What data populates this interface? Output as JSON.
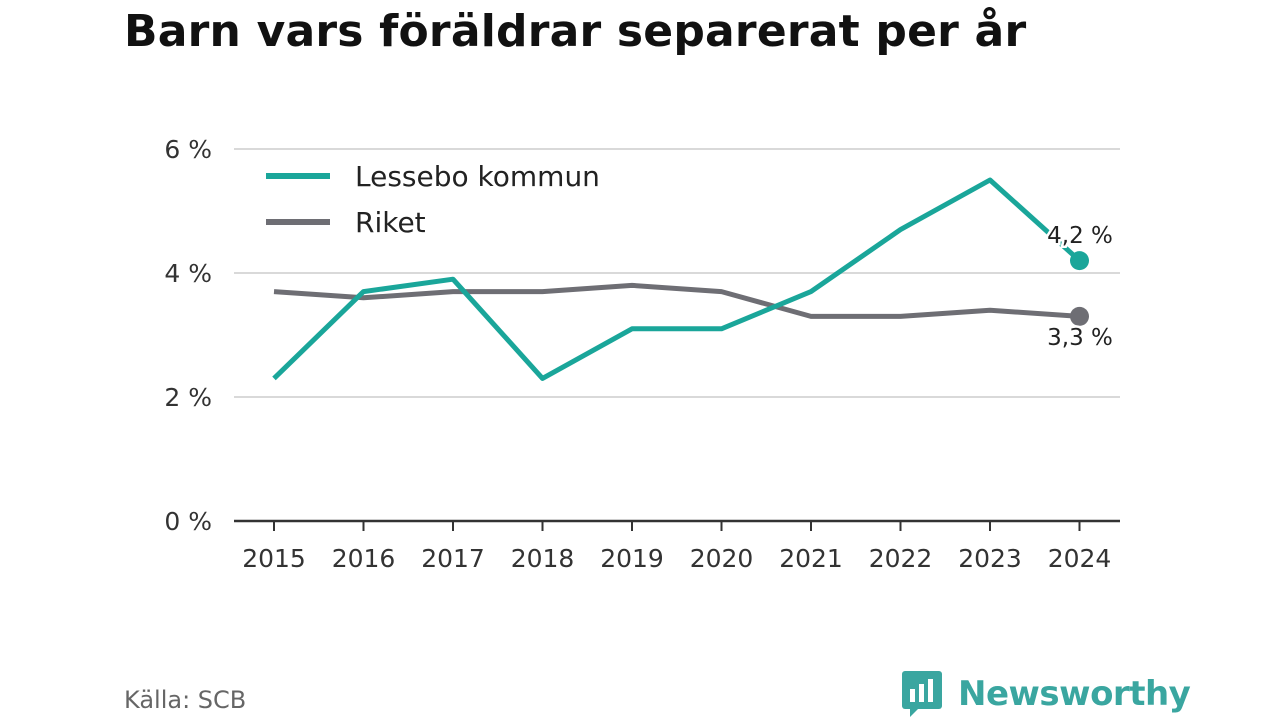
{
  "title": "Barn vars föräldrar separerat per år",
  "source": "Källa: SCB",
  "brand": {
    "name": "Newsworthy",
    "icon": "newsworthy-logo-icon"
  },
  "colors": {
    "lessebo": "#1aa69a",
    "riket": "#6e6e74",
    "grid": "#d9d9d9",
    "axis": "#333333"
  },
  "chart_data": {
    "type": "line",
    "title": "Barn vars föräldrar separerat per år",
    "xlabel": "",
    "ylabel": "",
    "categories": [
      "2015",
      "2016",
      "2017",
      "2018",
      "2019",
      "2020",
      "2021",
      "2022",
      "2023",
      "2024"
    ],
    "ylim": [
      0,
      6
    ],
    "y_ticks": [
      0,
      2,
      4,
      6
    ],
    "y_tick_labels": [
      "0 %",
      "2 %",
      "4 %",
      "6 %"
    ],
    "grid": true,
    "legend_position": "top-left",
    "series": [
      {
        "name": "Lessebo kommun",
        "color": "#1aa69a",
        "values": [
          2.3,
          3.7,
          3.9,
          2.3,
          3.1,
          3.1,
          3.7,
          4.7,
          5.5,
          4.2
        ],
        "end_label": "4,2 %"
      },
      {
        "name": "Riket",
        "color": "#6e6e74",
        "values": [
          3.7,
          3.6,
          3.7,
          3.7,
          3.8,
          3.7,
          3.3,
          3.3,
          3.4,
          3.3
        ],
        "end_label": "3,3 %"
      }
    ]
  }
}
